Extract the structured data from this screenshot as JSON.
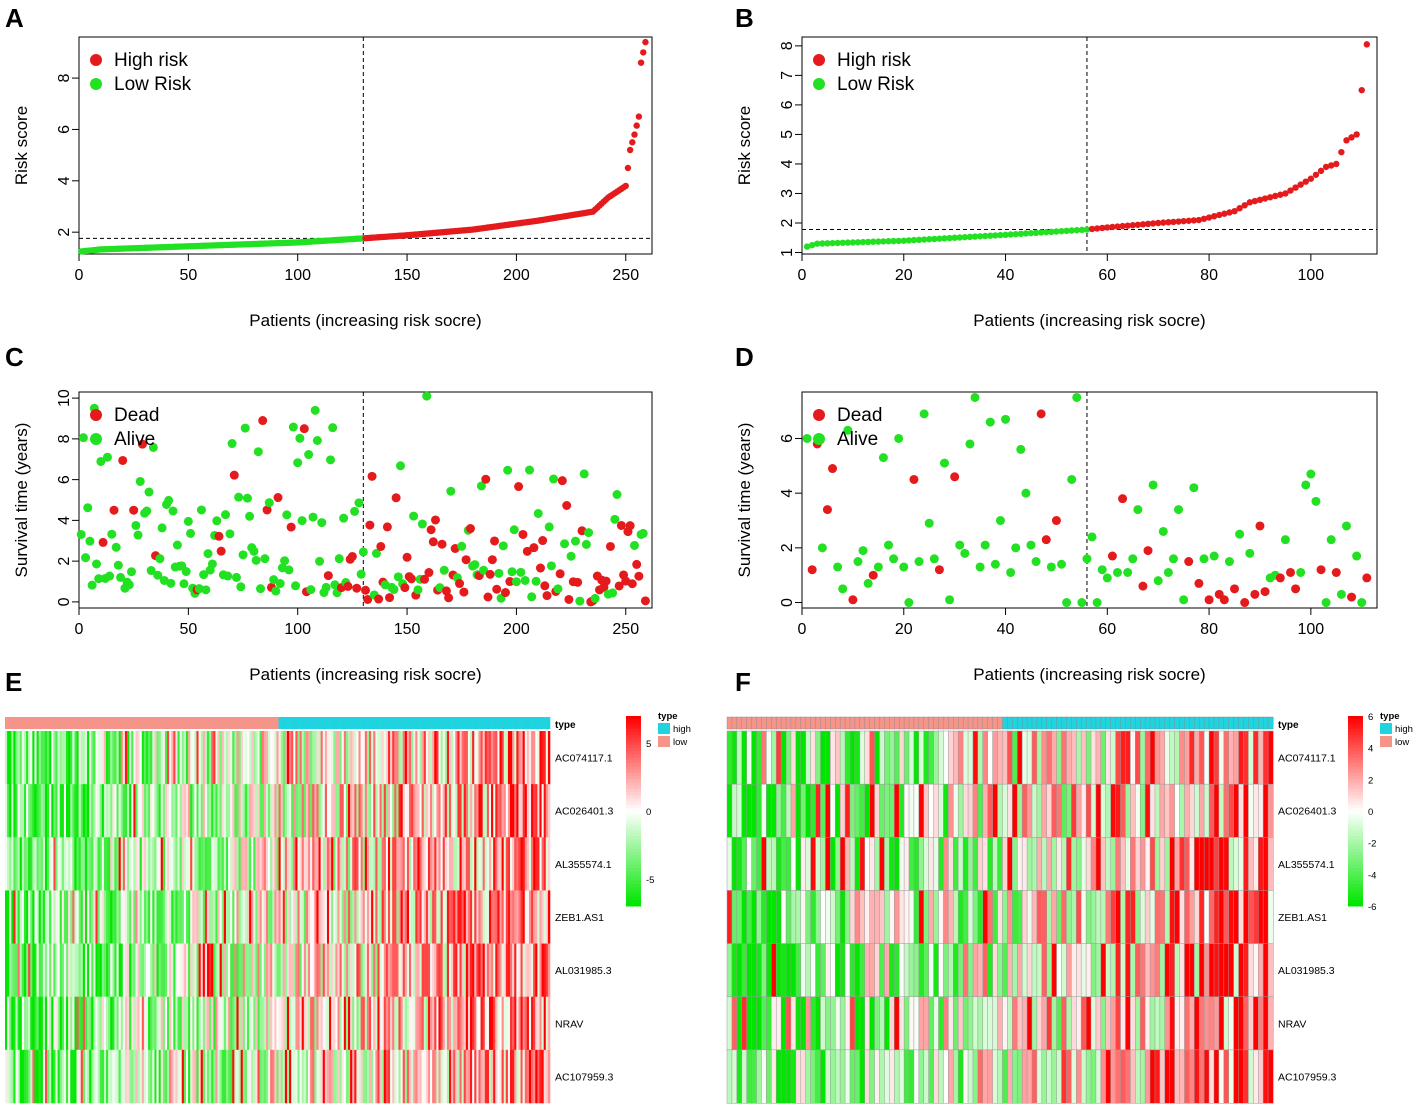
{
  "panels": [
    {
      "letter": "A"
    },
    {
      "letter": "B"
    },
    {
      "letter": "C"
    },
    {
      "letter": "D"
    },
    {
      "letter": "E"
    },
    {
      "letter": "F"
    }
  ],
  "chart_data": [
    {
      "id": "A",
      "type": "scatter",
      "title": "",
      "xlabel": "Patients (increasing risk socre)",
      "ylabel": "Risk score",
      "xlim": [
        0,
        262
      ],
      "ylim": [
        1.15,
        9.6
      ],
      "xticks": [
        0,
        50,
        100,
        150,
        200,
        250
      ],
      "yticks": [
        2,
        4,
        6,
        8
      ],
      "n": 259,
      "cutoff_index": 130,
      "cutoff_value": 1.76,
      "legend": [
        {
          "label": "High risk",
          "color": "#e41a1c"
        },
        {
          "label": "Low Risk",
          "color": "#22e022"
        }
      ],
      "curve": [
        [
          1,
          1.25
        ],
        [
          10,
          1.33
        ],
        [
          50,
          1.45
        ],
        [
          100,
          1.6
        ],
        [
          130,
          1.76
        ],
        [
          150,
          1.88
        ],
        [
          180,
          2.1
        ],
        [
          210,
          2.45
        ],
        [
          235,
          2.8
        ],
        [
          242,
          3.35
        ],
        [
          250,
          3.8
        ],
        [
          252,
          5.2
        ],
        [
          254,
          5.8
        ],
        [
          256,
          6.5
        ],
        [
          257,
          8.6
        ],
        [
          259,
          9.4
        ]
      ]
    },
    {
      "id": "B",
      "type": "scatter",
      "title": "",
      "xlabel": "Patients (increasing risk socre)",
      "ylabel": "Risk score",
      "xlim": [
        0,
        113
      ],
      "ylim": [
        0.95,
        8.3
      ],
      "xticks": [
        0,
        20,
        40,
        60,
        80,
        100
      ],
      "yticks": [
        1,
        2,
        3,
        4,
        5,
        6,
        7,
        8
      ],
      "n": 111,
      "cutoff_index": 56,
      "cutoff_value": 1.78,
      "legend": [
        {
          "label": "High risk",
          "color": "#e41a1c"
        },
        {
          "label": "Low Risk",
          "color": "#22e022"
        }
      ],
      "curve": [
        [
          1,
          1.2
        ],
        [
          3,
          1.3
        ],
        [
          20,
          1.4
        ],
        [
          40,
          1.6
        ],
        [
          56,
          1.78
        ],
        [
          60,
          1.85
        ],
        [
          70,
          2.0
        ],
        [
          78,
          2.1
        ],
        [
          85,
          2.4
        ],
        [
          88,
          2.7
        ],
        [
          95,
          3.0
        ],
        [
          100,
          3.5
        ],
        [
          103,
          3.9
        ],
        [
          105,
          4.0
        ],
        [
          107,
          4.8
        ],
        [
          109,
          5.0
        ],
        [
          110,
          6.5
        ],
        [
          111,
          8.05
        ]
      ]
    },
    {
      "id": "C",
      "type": "scatter",
      "title": "",
      "xlabel": "Patients (increasing risk socre)",
      "ylabel": "Survival time (years)",
      "xlim": [
        0,
        262
      ],
      "ylim": [
        -0.3,
        10.3
      ],
      "xticks": [
        0,
        50,
        100,
        150,
        200,
        250
      ],
      "yticks": [
        0,
        2,
        4,
        6,
        8,
        10
      ],
      "n": 259,
      "cutoff_index": 130,
      "legend": [
        {
          "label": "Dead",
          "color": "#e41a1c"
        },
        {
          "label": "Alive",
          "color": "#22e022"
        }
      ]
    },
    {
      "id": "D",
      "type": "scatter",
      "title": "",
      "xlabel": "Patients (increasing risk socre)",
      "ylabel": "Survival time (years)",
      "xlim": [
        0,
        113
      ],
      "ylim": [
        -0.2,
        7.7
      ],
      "xticks": [
        0,
        20,
        40,
        60,
        80,
        100
      ],
      "yticks": [
        0,
        2,
        4,
        6
      ],
      "n": 111,
      "cutoff_index": 56,
      "legend": [
        {
          "label": "Dead",
          "color": "#e41a1c"
        },
        {
          "label": "Alive",
          "color": "#22e022"
        }
      ],
      "points": [
        [
          1,
          6.0,
          "a"
        ],
        [
          2,
          1.2,
          "d"
        ],
        [
          3,
          5.8,
          "d"
        ],
        [
          4,
          2.0,
          "a"
        ],
        [
          5,
          3.4,
          "d"
        ],
        [
          6,
          4.9,
          "d"
        ],
        [
          7,
          1.3,
          "a"
        ],
        [
          8,
          0.5,
          "a"
        ],
        [
          9,
          6.3,
          "a"
        ],
        [
          10,
          0.1,
          "d"
        ],
        [
          11,
          1.5,
          "a"
        ],
        [
          12,
          1.9,
          "a"
        ],
        [
          13,
          0.7,
          "a"
        ],
        [
          14,
          1.0,
          "d"
        ],
        [
          15,
          1.3,
          "a"
        ],
        [
          16,
          5.3,
          "a"
        ],
        [
          17,
          2.1,
          "a"
        ],
        [
          18,
          1.6,
          "a"
        ],
        [
          19,
          6.0,
          "a"
        ],
        [
          20,
          1.3,
          "a"
        ],
        [
          21,
          0.0,
          "a"
        ],
        [
          22,
          4.5,
          "d"
        ],
        [
          23,
          1.5,
          "a"
        ],
        [
          24,
          6.9,
          "a"
        ],
        [
          25,
          2.9,
          "a"
        ],
        [
          26,
          1.6,
          "a"
        ],
        [
          27,
          1.2,
          "d"
        ],
        [
          28,
          5.1,
          "a"
        ],
        [
          29,
          0.1,
          "a"
        ],
        [
          30,
          4.6,
          "d"
        ],
        [
          31,
          2.1,
          "a"
        ],
        [
          32,
          1.8,
          "a"
        ],
        [
          33,
          5.8,
          "a"
        ],
        [
          34,
          7.5,
          "a"
        ],
        [
          35,
          1.3,
          "a"
        ],
        [
          36,
          2.1,
          "a"
        ],
        [
          37,
          6.6,
          "a"
        ],
        [
          38,
          1.4,
          "a"
        ],
        [
          39,
          3.0,
          "a"
        ],
        [
          40,
          6.7,
          "a"
        ],
        [
          41,
          1.1,
          "a"
        ],
        [
          42,
          2.0,
          "a"
        ],
        [
          43,
          5.6,
          "a"
        ],
        [
          44,
          4.0,
          "a"
        ],
        [
          45,
          2.1,
          "a"
        ],
        [
          46,
          1.5,
          "a"
        ],
        [
          47,
          6.9,
          "d"
        ],
        [
          48,
          2.3,
          "d"
        ],
        [
          49,
          1.3,
          "a"
        ],
        [
          50,
          3.0,
          "d"
        ],
        [
          51,
          1.4,
          "a"
        ],
        [
          52,
          0.0,
          "a"
        ],
        [
          53,
          4.5,
          "a"
        ],
        [
          54,
          7.5,
          "a"
        ],
        [
          55,
          0.0,
          "a"
        ],
        [
          56,
          1.6,
          "a"
        ],
        [
          57,
          2.4,
          "a"
        ],
        [
          58,
          0.0,
          "a"
        ],
        [
          59,
          1.2,
          "a"
        ],
        [
          60,
          0.9,
          "a"
        ],
        [
          61,
          1.7,
          "d"
        ],
        [
          62,
          1.1,
          "a"
        ],
        [
          63,
          3.8,
          "d"
        ],
        [
          64,
          1.1,
          "a"
        ],
        [
          65,
          1.6,
          "a"
        ],
        [
          66,
          3.4,
          "a"
        ],
        [
          67,
          0.6,
          "d"
        ],
        [
          68,
          1.9,
          "d"
        ],
        [
          69,
          4.3,
          "a"
        ],
        [
          70,
          0.8,
          "a"
        ],
        [
          71,
          2.6,
          "a"
        ],
        [
          72,
          1.1,
          "a"
        ],
        [
          73,
          1.6,
          "a"
        ],
        [
          74,
          3.4,
          "a"
        ],
        [
          75,
          0.1,
          "a"
        ],
        [
          76,
          1.5,
          "d"
        ],
        [
          77,
          4.2,
          "a"
        ],
        [
          78,
          0.7,
          "d"
        ],
        [
          79,
          1.6,
          "a"
        ],
        [
          80,
          0.1,
          "d"
        ],
        [
          81,
          1.7,
          "a"
        ],
        [
          82,
          0.3,
          "d"
        ],
        [
          83,
          0.1,
          "d"
        ],
        [
          84,
          1.5,
          "a"
        ],
        [
          85,
          0.5,
          "d"
        ],
        [
          86,
          2.5,
          "a"
        ],
        [
          87,
          0.0,
          "d"
        ],
        [
          88,
          1.8,
          "a"
        ],
        [
          89,
          0.3,
          "d"
        ],
        [
          90,
          2.8,
          "d"
        ],
        [
          91,
          0.4,
          "d"
        ],
        [
          92,
          0.9,
          "a"
        ],
        [
          93,
          1.0,
          "a"
        ],
        [
          94,
          0.9,
          "d"
        ],
        [
          95,
          2.3,
          "a"
        ],
        [
          96,
          1.1,
          "d"
        ],
        [
          97,
          0.5,
          "d"
        ],
        [
          98,
          1.1,
          "a"
        ],
        [
          99,
          4.3,
          "a"
        ],
        [
          100,
          4.7,
          "a"
        ],
        [
          101,
          3.7,
          "a"
        ],
        [
          102,
          1.2,
          "d"
        ],
        [
          103,
          0.0,
          "a"
        ],
        [
          104,
          2.3,
          "a"
        ],
        [
          105,
          1.1,
          "d"
        ],
        [
          106,
          0.3,
          "a"
        ],
        [
          107,
          2.8,
          "a"
        ],
        [
          108,
          0.2,
          "d"
        ],
        [
          109,
          1.7,
          "a"
        ],
        [
          110,
          0.0,
          "a"
        ],
        [
          111,
          0.9,
          "d"
        ]
      ]
    },
    {
      "id": "E",
      "type": "heatmap",
      "rows": [
        "AC074117.1",
        "AC026401.3",
        "AL355574.1",
        "ZEB1.AS1",
        "AL031985.3",
        "NRAV",
        "AC107959.3"
      ],
      "n_samples": 259,
      "low_count": 130,
      "annotation_label": "type",
      "legend_title": "type",
      "legend_items": [
        {
          "label": "high",
          "color": "#1fd3df"
        },
        {
          "label": "low",
          "color": "#f59488"
        }
      ],
      "colorbar_ticks": [
        5,
        0,
        -5
      ],
      "range": [
        -7,
        7
      ]
    },
    {
      "id": "F",
      "type": "heatmap",
      "rows": [
        "AC074117.1",
        "AC026401.3",
        "AL355574.1",
        "ZEB1.AS1",
        "AL031985.3",
        "NRAV",
        "AC107959.3"
      ],
      "n_samples": 111,
      "low_count": 56,
      "annotation_label": "type",
      "legend_title": "type",
      "legend_items": [
        {
          "label": "high",
          "color": "#1fd3df"
        },
        {
          "label": "low",
          "color": "#f59488"
        }
      ],
      "colorbar_ticks": [
        6,
        4,
        2,
        0,
        -2,
        -4,
        -6
      ],
      "range": [
        -6,
        6
      ]
    }
  ]
}
